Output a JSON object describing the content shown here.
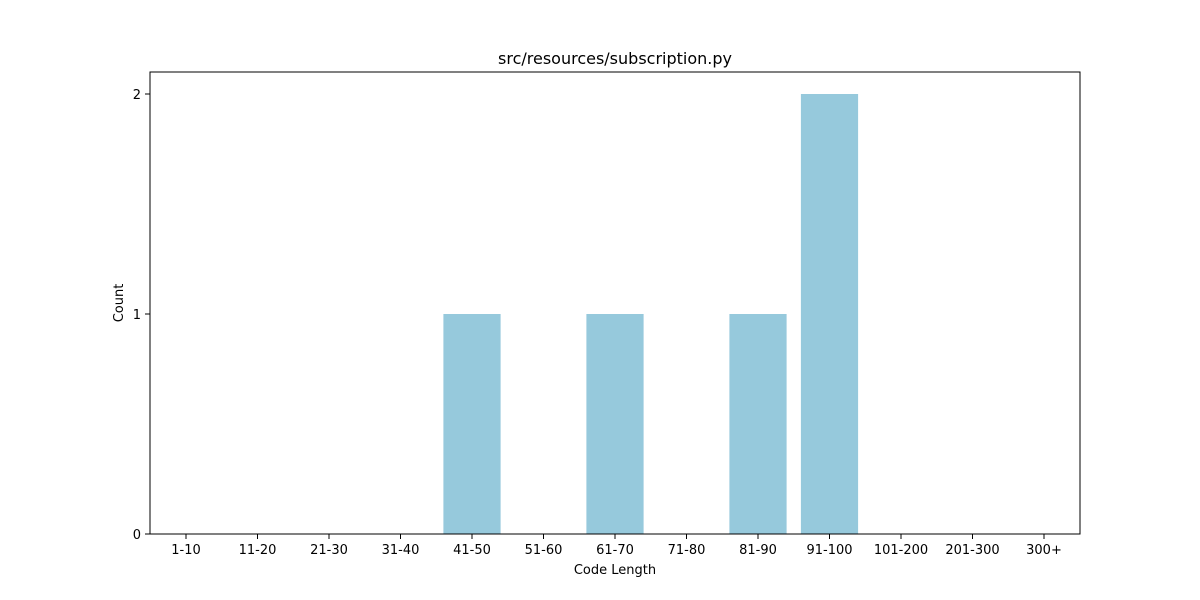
{
  "chart_data": {
    "type": "bar",
    "title": "src/resources/subscription.py",
    "xlabel": "Code Length",
    "ylabel": "Count",
    "categories": [
      "1-10",
      "11-20",
      "21-30",
      "31-40",
      "41-50",
      "51-60",
      "61-70",
      "71-80",
      "81-90",
      "91-100",
      "101-200",
      "201-300",
      "300+"
    ],
    "values": [
      0,
      0,
      0,
      0,
      1,
      0,
      1,
      0,
      1,
      2,
      0,
      0,
      0
    ],
    "ylim": [
      0,
      2.1
    ],
    "yticks": [
      "0",
      "1",
      "2"
    ],
    "grid": false,
    "bar_color": "#96c9dc"
  }
}
